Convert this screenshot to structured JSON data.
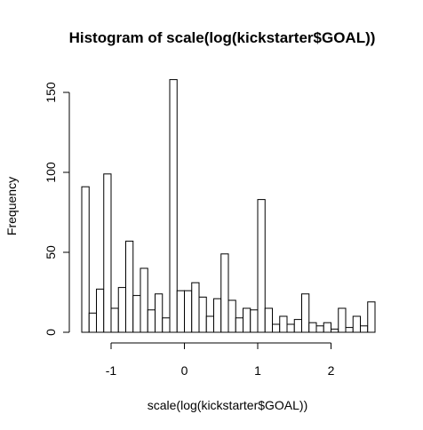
{
  "chart_data": {
    "type": "bar",
    "subtype": "histogram",
    "title": "Histogram of scale(log(kickstarter$GOAL))",
    "xlabel": "scale(log(kickstarter$GOAL))",
    "ylabel": "Frequency",
    "bin_width": 0.1,
    "x_start": -1.4,
    "x_ticks": [
      -1,
      0,
      1,
      2
    ],
    "x_tick_labels": [
      "-1",
      "0",
      "1",
      "2"
    ],
    "x_axis_range": [
      -1,
      2
    ],
    "y_ticks": [
      0,
      50,
      100,
      150
    ],
    "y_tick_labels": [
      "0",
      "50",
      "100",
      "150"
    ],
    "ylim": [
      0,
      158
    ],
    "values": [
      91,
      12,
      27,
      99,
      15,
      28,
      57,
      23,
      40,
      14,
      24,
      9,
      158,
      26,
      26,
      31,
      22,
      10,
      21,
      49,
      20,
      9,
      15,
      14,
      83,
      15,
      5,
      10,
      5,
      8,
      24,
      6,
      4,
      6,
      2,
      15,
      3,
      10,
      4,
      19
    ],
    "grid": false,
    "colors": {
      "bar_fill": "#ffffff",
      "bar_stroke": "#000000",
      "axis": "#000000"
    }
  }
}
